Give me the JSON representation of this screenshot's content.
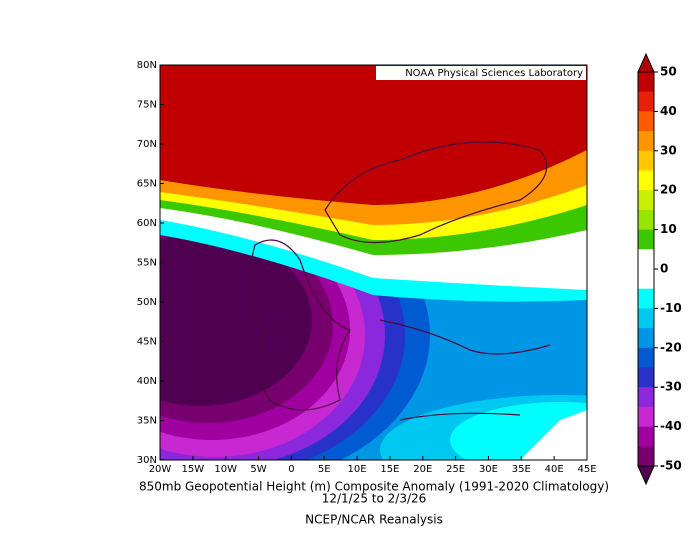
{
  "map": {
    "title_lines": [
      "850mb Geopotential Height (m) Composite Anomaly (1991-2020 Climatology)",
      "12/1/25  to 2/3/26"
    ],
    "source": "NCEP/NCAR Reanalysis",
    "credit": "NOAA Physical Sciences Laboratory",
    "lon_labels": [
      "20W",
      "15W",
      "10W",
      "5W",
      "0",
      "5E",
      "10E",
      "15E",
      "20E",
      "25E",
      "30E",
      "35E",
      "40E",
      "45E"
    ],
    "lat_labels": [
      "80N",
      "75N",
      "70N",
      "65N",
      "60N",
      "55N",
      "50N",
      "45N",
      "40N",
      "35N",
      "30N"
    ],
    "colorbar": {
      "ticks": [
        50,
        40,
        30,
        20,
        10,
        0,
        -10,
        -20,
        -30,
        -40,
        -50
      ],
      "over_color": "#b00000",
      "under_color": "#500050",
      "colors": [
        "#c00000",
        "#e8200a",
        "#ff5a00",
        "#ff9600",
        "#ffc800",
        "#ffff00",
        "#c8f000",
        "#96e600",
        "#3cc800",
        "#ffffff",
        "#ffffff",
        "#00ffff",
        "#00c8f0",
        "#0096e6",
        "#005ad2",
        "#2832c8",
        "#8c28dc",
        "#c828d2",
        "#a000a0",
        "#78006e"
      ]
    }
  }
}
